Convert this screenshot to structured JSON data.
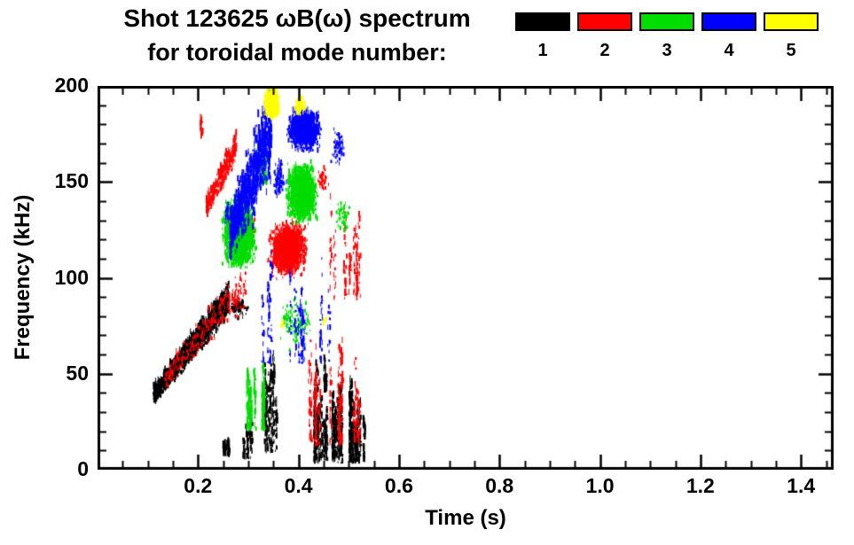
{
  "chart_data": {
    "type": "scatter",
    "title": "Shot 123625 ωB(ω) spectrum",
    "subtitle": "for toroidal mode number:",
    "xlabel": "Time (s)",
    "ylabel": "Frequency (kHz)",
    "xlim": [
      0,
      1.465
    ],
    "ylim": [
      0,
      200
    ],
    "xticks": [
      {
        "value": 0.2,
        "label": "0.2"
      },
      {
        "value": 0.4,
        "label": "0.4"
      },
      {
        "value": 0.6,
        "label": "0.6"
      },
      {
        "value": 0.8,
        "label": "0.8"
      },
      {
        "value": 1.0,
        "label": "1.0"
      },
      {
        "value": 1.2,
        "label": "1.2"
      },
      {
        "value": 1.4,
        "label": "1.4"
      }
    ],
    "yticks": [
      {
        "value": 0,
        "label": "0"
      },
      {
        "value": 50,
        "label": "50"
      },
      {
        "value": 100,
        "label": "100"
      },
      {
        "value": 150,
        "label": "150"
      },
      {
        "value": 200,
        "label": "200"
      }
    ],
    "x_minor_step": 0.05,
    "y_minor_step": 10,
    "grid": false,
    "axis_color": "#000000",
    "background_color": "#ffffff",
    "legend": {
      "position": "top-right",
      "entries": [
        {
          "mode": "1",
          "color": "#000000"
        },
        {
          "mode": "2",
          "color": "#ff0000"
        },
        {
          "mode": "3",
          "color": "#00dd00"
        },
        {
          "mode": "4",
          "color": "#0000ff"
        },
        {
          "mode": "5",
          "color": "#ffff00"
        }
      ]
    },
    "series": [
      {
        "name": "toroidal mode n=1",
        "mode": "1",
        "color": "#000000",
        "clusters": [
          {
            "shape": "rise",
            "t": [
              0.11,
              0.26
            ],
            "f": [
              38,
              88
            ],
            "spread": 12,
            "dash": 5,
            "n": 1600
          },
          {
            "shape": "stripes",
            "t": [
              0.245,
              0.262
            ],
            "f": [
              6,
              16
            ],
            "k": 4,
            "n": 48
          },
          {
            "shape": "stripes",
            "t": [
              0.288,
              0.306
            ],
            "f": [
              5,
              28
            ],
            "k": 5,
            "n": 90
          },
          {
            "shape": "stripes",
            "t": [
              0.325,
              0.36
            ],
            "f": [
              8,
              62
            ],
            "k": 8,
            "n": 240
          },
          {
            "shape": "stripes",
            "t": [
              0.415,
              0.53
            ],
            "f": [
              3,
              46
            ],
            "k": 26,
            "n": 950
          },
          {
            "shape": "stripes",
            "t": [
              0.435,
              0.458
            ],
            "f": [
              40,
              64
            ],
            "k": 4,
            "n": 70
          },
          {
            "shape": "blob",
            "tc": 0.28,
            "rt": 0.022,
            "fc": 84,
            "rf": 7,
            "dash": 3,
            "n": 70
          }
        ]
      },
      {
        "name": "toroidal mode n=2",
        "mode": "2",
        "color": "#ff0000",
        "clusters": [
          {
            "shape": "rise",
            "t": [
              0.13,
              0.295
            ],
            "f": [
              46,
              96
            ],
            "spread": 16,
            "dash": 4,
            "n": 240
          },
          {
            "shape": "rise",
            "t": [
              0.215,
              0.275
            ],
            "f": [
              136,
              168
            ],
            "spread": 12,
            "dash": 7,
            "n": 260
          },
          {
            "shape": "stripes",
            "t": [
              0.196,
              0.206
            ],
            "f": [
              172,
              190
            ],
            "k": 2,
            "n": 26
          },
          {
            "shape": "blob",
            "tc": 0.378,
            "rt": 0.042,
            "fc": 114,
            "rf": 17,
            "dash": 4,
            "n": 1700
          },
          {
            "shape": "stripes",
            "t": [
              0.42,
              0.525
            ],
            "f": [
              12,
              68
            ],
            "k": 18,
            "n": 300
          },
          {
            "shape": "stripes",
            "t": [
              0.455,
              0.53
            ],
            "f": [
              88,
              142
            ],
            "k": 10,
            "n": 150
          },
          {
            "shape": "blob",
            "tc": 0.447,
            "rt": 0.012,
            "fc": 150,
            "rf": 8,
            "dash": 3,
            "n": 40
          },
          {
            "shape": "blob",
            "tc": 0.305,
            "rt": 0.008,
            "fc": 124,
            "rf": 8,
            "dash": 3,
            "n": 30
          }
        ]
      },
      {
        "name": "toroidal mode n=3",
        "mode": "3",
        "color": "#00dd00",
        "clusters": [
          {
            "shape": "blob",
            "tc": 0.28,
            "rt": 0.038,
            "fc": 122,
            "rf": 22,
            "dash": 5,
            "n": 1900
          },
          {
            "shape": "blob",
            "tc": 0.405,
            "rt": 0.036,
            "fc": 143,
            "rf": 18,
            "dash": 5,
            "n": 1500
          },
          {
            "shape": "stripes",
            "t": [
              0.295,
              0.332
            ],
            "f": [
              20,
              56
            ],
            "k": 7,
            "n": 320
          },
          {
            "shape": "blob",
            "tc": 0.39,
            "rt": 0.045,
            "fc": 76,
            "rf": 16,
            "dash": 3,
            "n": 120
          },
          {
            "shape": "stripes",
            "t": [
              0.31,
              0.345
            ],
            "f": [
              148,
              172
            ],
            "k": 6,
            "n": 90
          },
          {
            "shape": "blob",
            "tc": 0.487,
            "rt": 0.018,
            "fc": 131,
            "rf": 11,
            "dash": 3,
            "n": 60
          }
        ]
      },
      {
        "name": "toroidal mode n=4",
        "mode": "4",
        "color": "#0000ff",
        "clusters": [
          {
            "shape": "rise",
            "t": [
              0.262,
              0.345
            ],
            "f": [
              122,
              176
            ],
            "spread": 34,
            "dash": 9,
            "n": 850
          },
          {
            "shape": "blob",
            "tc": 0.41,
            "rt": 0.036,
            "fc": 176,
            "rf": 12,
            "dash": 5,
            "n": 1250
          },
          {
            "shape": "blob",
            "tc": 0.36,
            "rt": 0.016,
            "fc": 150,
            "rf": 14,
            "dash": 4,
            "n": 90
          },
          {
            "shape": "stripes",
            "t": [
              0.305,
              0.46
            ],
            "f": [
              55,
              120
            ],
            "k": 14,
            "n": 190
          },
          {
            "shape": "blob",
            "tc": 0.478,
            "rt": 0.016,
            "fc": 167,
            "rf": 13,
            "dash": 3,
            "n": 60
          },
          {
            "shape": "blob",
            "tc": 0.256,
            "rt": 0.008,
            "fc": 133,
            "rf": 7,
            "dash": 3,
            "n": 26
          }
        ]
      },
      {
        "name": "toroidal mode n=5",
        "mode": "5",
        "color": "#ffff00",
        "clusters": [
          {
            "shape": "blob",
            "tc": 0.345,
            "rt": 0.018,
            "fc": 190,
            "rf": 9,
            "dash": 4,
            "n": 650
          },
          {
            "shape": "blob",
            "tc": 0.401,
            "rt": 0.013,
            "fc": 189,
            "rf": 6,
            "dash": 3,
            "n": 110
          },
          {
            "shape": "blob",
            "tc": 0.366,
            "rt": 0.005,
            "fc": 75,
            "rf": 3,
            "dash": 2,
            "n": 14
          },
          {
            "shape": "blob",
            "tc": 0.45,
            "rt": 0.005,
            "fc": 77,
            "rf": 3,
            "dash": 2,
            "n": 12
          }
        ]
      }
    ]
  }
}
